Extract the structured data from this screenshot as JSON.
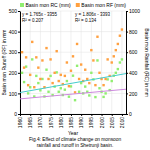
{
  "chart_data": {
    "type": "scatter",
    "title": "Fig.4: Effect of climate change on monsoon\nrainfall and runoff in Shetrunji basin.",
    "xlabel": "Year",
    "ylabel": "Basin mon Runoff (RF) in mm",
    "y2label": "Basin mon Rainfall (RC) in mm",
    "xlim": [
      1960,
      2012
    ],
    "xticks": [
      1960,
      1965,
      1970,
      1975,
      1980,
      1985,
      1990,
      1995,
      2000,
      2005,
      2010
    ],
    "ylim": [
      0,
      500
    ],
    "yticks": [
      0,
      100,
      200,
      300,
      400,
      500
    ],
    "y2lim": [
      0,
      1000
    ],
    "y2ticks": [
      0,
      200,
      400,
      600,
      800,
      1000
    ],
    "grid": true,
    "legend": "top-left",
    "annotations": [
      "y = 1.765x - 3355\nR² = 0.207",
      "y = 1.806x - 3393\nR² = 0.134"
    ],
    "series": [
      {
        "name": "Basin mon RC (mm)",
        "color": "#90EE70",
        "marker": "square",
        "x": [
          1961,
          1962,
          1963,
          1964,
          1965,
          1966,
          1967,
          1968,
          1969,
          1970,
          1971,
          1972,
          1973,
          1974,
          1975,
          1976,
          1977,
          1978,
          1979,
          1980,
          1981,
          1982,
          1983,
          1984,
          1985,
          1986,
          1987,
          1988,
          1989,
          1990,
          1991,
          1992,
          1993,
          1994,
          1995,
          1996,
          1997,
          1998,
          1999,
          2000,
          2001,
          2002,
          2003,
          2004,
          2005,
          2006,
          2007,
          2008,
          2009,
          2010
        ],
        "values": [
          200,
          155,
          230,
          100,
          130,
          265,
          85,
          185,
          150,
          115,
          170,
          85,
          215,
          108,
          185,
          92,
          133,
          202,
          108,
          125,
          92,
          118,
          160,
          84,
          134,
          186,
          67,
          234,
          108,
          150,
          100,
          133,
          108,
          90,
          200,
          168,
          82,
          260,
          125,
          108,
          83,
          100,
          168,
          116,
          160,
          186,
          200,
          218,
          250,
          265
        ]
      },
      {
        "name": "Basin mon RF (mm)",
        "color": "#FFA040",
        "marker": "square",
        "axis": "y2",
        "x": [
          1961,
          1962,
          1963,
          1964,
          1965,
          1966,
          1967,
          1968,
          1969,
          1970,
          1971,
          1972,
          1973,
          1974,
          1975,
          1976,
          1977,
          1978,
          1979,
          1980,
          1981,
          1982,
          1983,
          1984,
          1985,
          1986,
          1987,
          1988,
          1989,
          1990,
          1991,
          1992,
          1993,
          1994,
          1995,
          1996,
          1997,
          1998,
          1999,
          2000,
          2001,
          2002,
          2003,
          2004,
          2005,
          2006,
          2007,
          2008,
          2009,
          2010
        ],
        "values": [
          600,
          450,
          550,
          280,
          380,
          700,
          260,
          550,
          450,
          340,
          520,
          260,
          640,
          340,
          530,
          300,
          400,
          610,
          320,
          380,
          290,
          370,
          500,
          270,
          420,
          560,
          210,
          680,
          340,
          480,
          320,
          430,
          340,
          300,
          620,
          520,
          280,
          750,
          400,
          340,
          280,
          340,
          530,
          370,
          500,
          560,
          620,
          680,
          760,
          820
        ]
      },
      {
        "type": "line",
        "color": "#44CCCC",
        "x": [
          1960,
          2012
        ],
        "values": [
          104.4,
          196.18
        ]
      },
      {
        "type": "line",
        "color": "#CC88DD",
        "axis": "y2",
        "x": [
          1960,
          2012
        ],
        "values": [
          146.76,
          240.672
        ]
      }
    ]
  }
}
